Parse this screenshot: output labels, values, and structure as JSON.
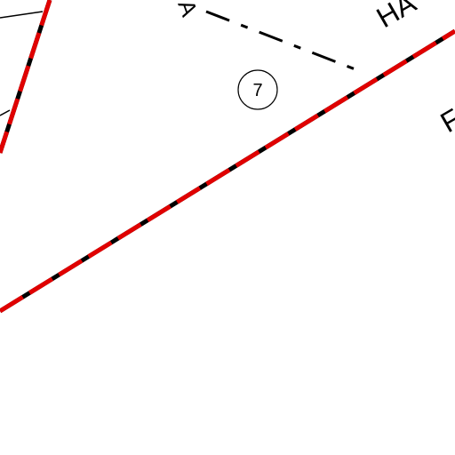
{
  "map": {
    "labels": {
      "parcel_number": "7",
      "road_name": "HA",
      "area_name": "F",
      "marker": "A"
    }
  }
}
